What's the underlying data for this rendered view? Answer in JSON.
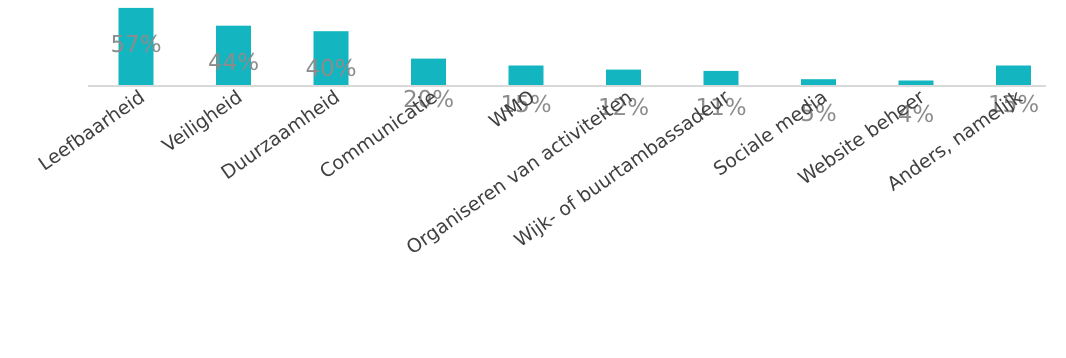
{
  "chart_data": {
    "type": "bar",
    "categories": [
      "Leefbaarheid",
      "Veiligheid",
      "Duurzaamheid",
      "Communicatie",
      "WMO",
      "Organiseren van activiteiten",
      "Wijk- of buurtambassadeur",
      "Sociale media",
      "Website beheer",
      "Anders, namelijk"
    ],
    "values": [
      57,
      44,
      40,
      20,
      15,
      12,
      11,
      5,
      4,
      15
    ],
    "value_labels": [
      "57%",
      "44%",
      "40%",
      "20%",
      "15%",
      "12%",
      "11%",
      "5%",
      "4%",
      "15%"
    ],
    "ylim": [
      0,
      60
    ],
    "grid": false,
    "bar_color": "#12b5c0"
  }
}
